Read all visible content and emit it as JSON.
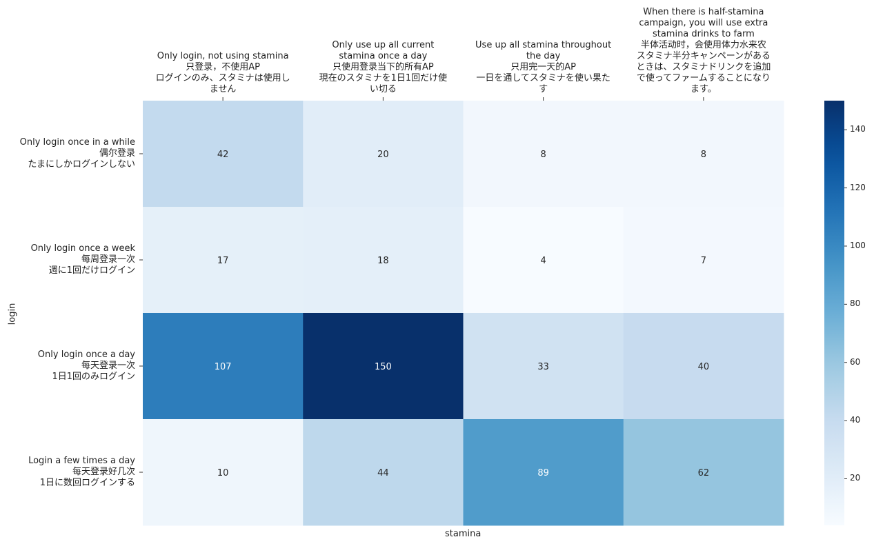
{
  "chart_data": {
    "type": "heatmap",
    "xlabel": "stamina",
    "ylabel": "login",
    "columns": [
      "Only login, not using stamina\n只登录，不使用AP\nログインのみ、スタミナは使用し\nません",
      "Only use up all current\nstamina once a day\n只使用登录当下的所有AP\n現在のスタミナを1日1回だけ使\nい切る",
      "Use up all stamina throughout\nthe day\n只用完一天的AP\n一日を通してスタミナを使い果た\nす",
      "When there is half-stamina\ncampaign, you will use extra\nstamina drinks to farm\n半体活动时，会使用体力水来农\nスタミナ半分キャンペーンがある\nときは、スタミナドリンクを追加\nで使ってファームすることになり\nます。"
    ],
    "rows": [
      "Only login once in a while\n偶尔登录\nたまにしかログインしない",
      "Only login once a week\n每周登录一次\n週に1回だけログイン",
      "Only login once a day\n每天登录一次\n1日1回のみログイン",
      "Login a few times a day\n每天登录好几次\n1日に数回ログインする"
    ],
    "values": [
      [
        42,
        20,
        8,
        8
      ],
      [
        17,
        18,
        4,
        7
      ],
      [
        107,
        150,
        33,
        40
      ],
      [
        10,
        44,
        89,
        62
      ]
    ],
    "colormap": "Blues",
    "colorbar": {
      "min": 4,
      "max": 150,
      "ticks": [
        20,
        40,
        60,
        80,
        100,
        120,
        140
      ]
    }
  }
}
